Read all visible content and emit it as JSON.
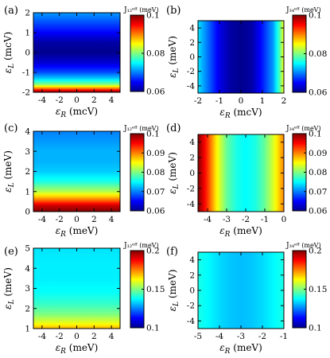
{
  "colormap": [
    "#00008f",
    "#0000ff",
    "#0080ff",
    "#00ffff",
    "#80ff80",
    "#ffff00",
    "#ff8000",
    "#ff0000",
    "#800000"
  ],
  "chart_data": [
    {
      "type": "heatmap",
      "panel_label": "(a)",
      "xlabel": "ε_R (mcV)",
      "ylabel": "ε_L (mcV)",
      "xlim": [
        -5,
        5
      ],
      "ylim": [
        -2,
        2
      ],
      "xticks": [
        -4,
        -2,
        0,
        2,
        4
      ],
      "yticks": [
        -2,
        -1,
        0,
        1,
        2
      ],
      "colorbar": {
        "label": "J₁₂ᵉᶠᶠ (meV)",
        "range": [
          0.06,
          0.1
        ],
        "ticks": [
          "0.1",
          "0.08",
          "0.06"
        ]
      },
      "field": {
        "axis": "y",
        "points": [
          [
            -2,
            0.1
          ],
          [
            -1.8,
            0.09
          ],
          [
            -1.6,
            0.08
          ],
          [
            -1.3,
            0.073
          ],
          [
            -1,
            0.068
          ],
          [
            -0.5,
            0.063
          ],
          [
            0,
            0.06
          ],
          [
            0.5,
            0.061
          ],
          [
            1,
            0.065
          ],
          [
            1.5,
            0.068
          ],
          [
            2,
            0.071
          ]
        ]
      }
    },
    {
      "type": "heatmap",
      "panel_label": "(b)",
      "xlabel": "ε_R (mcV)",
      "ylabel": "ε_L (meV)",
      "xlim": [
        -2,
        2
      ],
      "ylim": [
        -5,
        5
      ],
      "xticks": [
        -2,
        -1,
        0,
        1,
        2
      ],
      "yticks": [
        -4,
        -2,
        0,
        2,
        4
      ],
      "colorbar": {
        "label": "J₃₄ᵉᶠᶠ (meV)",
        "range": [
          0.06,
          0.1
        ],
        "ticks": [
          "0.1",
          "0.08",
          "0.06"
        ]
      },
      "field": {
        "axis": "x",
        "points": [
          [
            -2,
            0.074
          ],
          [
            -1.6,
            0.07
          ],
          [
            -1,
            0.064
          ],
          [
            -0.5,
            0.061
          ],
          [
            0,
            0.06
          ],
          [
            0.5,
            0.061
          ],
          [
            1,
            0.066
          ],
          [
            1.5,
            0.071
          ],
          [
            1.8,
            0.078
          ],
          [
            2,
            0.085
          ]
        ]
      }
    },
    {
      "type": "heatmap",
      "panel_label": "(c)",
      "xlabel": "ε_R (meV)",
      "ylabel": "ε_L (meV)",
      "xlim": [
        -5,
        5
      ],
      "ylim": [
        0,
        4
      ],
      "xticks": [
        -4,
        -2,
        0,
        2,
        4
      ],
      "yticks": [
        0,
        1,
        2,
        3,
        4
      ],
      "colorbar": {
        "label": "J₁₂ᵉᶠᶠ (meV)",
        "range": [
          0.06,
          0.1
        ],
        "ticks": [
          "0.1",
          "0.09",
          "0.08",
          "0.07",
          "0.06"
        ]
      },
      "field": {
        "axis": "y",
        "points": [
          [
            0,
            0.1
          ],
          [
            0.3,
            0.097
          ],
          [
            0.6,
            0.09
          ],
          [
            1,
            0.082
          ],
          [
            1.5,
            0.076
          ],
          [
            2,
            0.073
          ],
          [
            2.5,
            0.072
          ],
          [
            3,
            0.072
          ],
          [
            3.5,
            0.071
          ],
          [
            4,
            0.07
          ]
        ]
      }
    },
    {
      "type": "heatmap",
      "panel_label": "(d)",
      "xlabel": "ε_R (meV)",
      "ylabel": "ε_L (meV)",
      "xlim": [
        -4.5,
        0
      ],
      "ylim": [
        -5,
        5
      ],
      "xticks": [
        -4,
        -3,
        -2,
        -1,
        0
      ],
      "yticks": [
        -4,
        -2,
        0,
        2,
        4
      ],
      "colorbar": {
        "label": "J₃₄ᵉᶠᶠ (meV)",
        "range": [
          0.06,
          0.1
        ],
        "ticks": [
          "0.1",
          "0.09",
          "0.08",
          "0.07",
          "0.06"
        ]
      },
      "field": {
        "axis": "x",
        "points": [
          [
            -4.5,
            0.1
          ],
          [
            -4,
            0.093
          ],
          [
            -3.5,
            0.085
          ],
          [
            -3,
            0.079
          ],
          [
            -2.5,
            0.076
          ],
          [
            -2,
            0.075
          ],
          [
            -1.5,
            0.076
          ],
          [
            -1,
            0.079
          ],
          [
            -0.5,
            0.084
          ],
          [
            0,
            0.09
          ]
        ]
      }
    },
    {
      "type": "heatmap",
      "panel_label": "(e)",
      "xlabel": "ε_R (meV)",
      "ylabel": "ε_L (meV)",
      "xlim": [
        -5,
        5
      ],
      "ylim": [
        1,
        5
      ],
      "xticks": [
        -4,
        -2,
        0,
        2,
        4
      ],
      "yticks": [
        1,
        2,
        3,
        4,
        5
      ],
      "colorbar": {
        "label": "J₁₂ᵉᶠᶠ (meV)",
        "range": [
          0.1,
          0.2
        ],
        "ticks": [
          "0.2",
          "0.15",
          "0.1"
        ]
      },
      "field": {
        "axis": "y",
        "points": [
          [
            1,
            0.17
          ],
          [
            1.3,
            0.16
          ],
          [
            1.7,
            0.15
          ],
          [
            2.2,
            0.143
          ],
          [
            2.8,
            0.138
          ],
          [
            3.5,
            0.136
          ],
          [
            4.2,
            0.136
          ],
          [
            5,
            0.135
          ]
        ]
      }
    },
    {
      "type": "heatmap",
      "panel_label": "(f)",
      "xlabel": "ε_R (meV)",
      "ylabel": "ε_L (meV)",
      "xlim": [
        -5,
        -1
      ],
      "ylim": [
        -5,
        5
      ],
      "xticks": [
        -5,
        -4,
        -3,
        -2,
        -1
      ],
      "yticks": [
        -4,
        -2,
        0,
        2,
        4
      ],
      "colorbar": {
        "label": "J₃₄ᵉᶠᶠ (meV)",
        "range": [
          0.1,
          0.2
        ],
        "ticks": [
          "0.2",
          "0.15",
          "0.1"
        ]
      },
      "field": {
        "axis": "x",
        "points": [
          [
            -5,
            0.14
          ],
          [
            -4.5,
            0.137
          ],
          [
            -4,
            0.134
          ],
          [
            -3.5,
            0.132
          ],
          [
            -3,
            0.131
          ],
          [
            -2.5,
            0.132
          ],
          [
            -2,
            0.134
          ],
          [
            -1.5,
            0.137
          ],
          [
            -1,
            0.14
          ]
        ]
      }
    }
  ]
}
